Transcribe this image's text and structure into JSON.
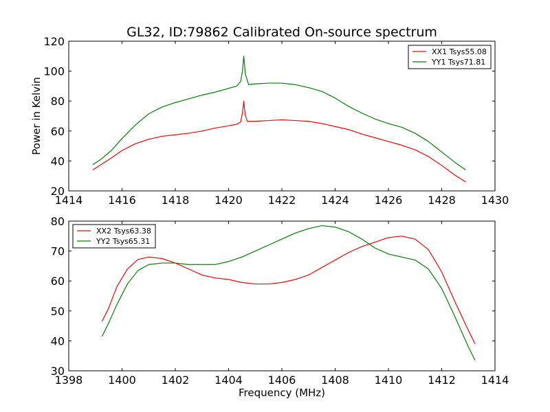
{
  "chart_data": [
    {
      "type": "line",
      "title": "GL32, ID:79862 Calibrated On-source spectrum",
      "xlabel": "",
      "ylabel": "Power in Kelvin",
      "xlim": [
        1414,
        1430
      ],
      "ylim": [
        20,
        120
      ],
      "xticks": [
        "1414",
        "1416",
        "1418",
        "1420",
        "1422",
        "1424",
        "1426",
        "1428",
        "1430"
      ],
      "yticks": [
        "20",
        "40",
        "60",
        "80",
        "100",
        "120"
      ],
      "grid": false,
      "legend_position": "top-right",
      "series": [
        {
          "name": "XX1 Tsys55.08",
          "color": "#ff0000",
          "points": [
            [
              1414.9,
              34
            ],
            [
              1415.2,
              37.5
            ],
            [
              1415.6,
              42
            ],
            [
              1416.0,
              47
            ],
            [
              1416.5,
              51.5
            ],
            [
              1417.0,
              54.5
            ],
            [
              1417.5,
              56.5
            ],
            [
              1418.0,
              57.5
            ],
            [
              1418.5,
              58.5
            ],
            [
              1419.0,
              60
            ],
            [
              1419.5,
              62
            ],
            [
              1420.0,
              63.5
            ],
            [
              1420.3,
              64.5
            ],
            [
              1420.45,
              66
            ],
            [
              1420.52,
              72
            ],
            [
              1420.57,
              80
            ],
            [
              1420.62,
              71
            ],
            [
              1420.7,
              66.5
            ],
            [
              1421.0,
              66.5
            ],
            [
              1421.5,
              67
            ],
            [
              1422.0,
              67.5
            ],
            [
              1422.5,
              67
            ],
            [
              1423.0,
              66.5
            ],
            [
              1423.5,
              65
            ],
            [
              1424.0,
              63
            ],
            [
              1424.5,
              61
            ],
            [
              1425.0,
              58
            ],
            [
              1425.5,
              55.5
            ],
            [
              1426.0,
              53
            ],
            [
              1426.5,
              50.5
            ],
            [
              1427.0,
              47.5
            ],
            [
              1427.5,
              43
            ],
            [
              1428.0,
              37
            ],
            [
              1428.5,
              30.5
            ],
            [
              1428.9,
              26
            ]
          ]
        },
        {
          "name": "YY1 Tsys71.81",
          "color": "#008000",
          "points": [
            [
              1414.9,
              37.5
            ],
            [
              1415.2,
              41
            ],
            [
              1415.6,
              47
            ],
            [
              1416.0,
              55
            ],
            [
              1416.5,
              64
            ],
            [
              1417.0,
              71.5
            ],
            [
              1417.5,
              76
            ],
            [
              1418.0,
              79
            ],
            [
              1418.5,
              81.5
            ],
            [
              1419.0,
              84
            ],
            [
              1419.5,
              86
            ],
            [
              1420.0,
              88.5
            ],
            [
              1420.3,
              90
            ],
            [
              1420.45,
              93
            ],
            [
              1420.52,
              100
            ],
            [
              1420.57,
              110
            ],
            [
              1420.63,
              98
            ],
            [
              1420.75,
              91
            ],
            [
              1421.0,
              91.5
            ],
            [
              1421.5,
              92
            ],
            [
              1422.0,
              92
            ],
            [
              1422.5,
              91
            ],
            [
              1423.0,
              89
            ],
            [
              1423.5,
              86.5
            ],
            [
              1424.0,
              82
            ],
            [
              1424.5,
              76.5
            ],
            [
              1425.0,
              72
            ],
            [
              1425.5,
              68
            ],
            [
              1426.0,
              65
            ],
            [
              1426.5,
              62.5
            ],
            [
              1427.0,
              58.5
            ],
            [
              1427.5,
              53
            ],
            [
              1428.0,
              46
            ],
            [
              1428.5,
              39
            ],
            [
              1428.9,
              34
            ]
          ]
        }
      ]
    },
    {
      "type": "line",
      "title": "",
      "xlabel": "Frequency (MHz)",
      "ylabel": "",
      "xlim": [
        1398,
        1414
      ],
      "ylim": [
        30,
        80
      ],
      "xticks": [
        "1398",
        "1400",
        "1402",
        "1404",
        "1406",
        "1408",
        "1410",
        "1412",
        "1414"
      ],
      "yticks": [
        "30",
        "40",
        "50",
        "60",
        "70",
        "80"
      ],
      "grid": false,
      "legend_position": "top-left",
      "series": [
        {
          "name": "XX2 Tsys63.38",
          "color": "#ff0000",
          "points": [
            [
              1399.25,
              46.5
            ],
            [
              1399.5,
              51
            ],
            [
              1399.8,
              58
            ],
            [
              1400.2,
              64
            ],
            [
              1400.6,
              67.2
            ],
            [
              1401.0,
              68
            ],
            [
              1401.5,
              67.5
            ],
            [
              1402.0,
              66
            ],
            [
              1402.5,
              64
            ],
            [
              1403.0,
              62
            ],
            [
              1403.5,
              61
            ],
            [
              1404.0,
              60.5
            ],
            [
              1404.5,
              59.5
            ],
            [
              1405.0,
              59
            ],
            [
              1405.5,
              59
            ],
            [
              1406.0,
              59.5
            ],
            [
              1406.5,
              60.5
            ],
            [
              1407.0,
              62
            ],
            [
              1407.5,
              64.5
            ],
            [
              1408.0,
              67
            ],
            [
              1408.5,
              69.5
            ],
            [
              1409.0,
              71.5
            ],
            [
              1409.5,
              73
            ],
            [
              1410.0,
              74.5
            ],
            [
              1410.5,
              75
            ],
            [
              1411.0,
              74
            ],
            [
              1411.5,
              70.5
            ],
            [
              1412.0,
              63
            ],
            [
              1412.5,
              53
            ],
            [
              1413.0,
              43.5
            ],
            [
              1413.25,
              39
            ]
          ]
        },
        {
          "name": "YY2 Tsys65.31",
          "color": "#008000",
          "points": [
            [
              1399.25,
              41.5
            ],
            [
              1399.5,
              46
            ],
            [
              1399.8,
              52
            ],
            [
              1400.2,
              59
            ],
            [
              1400.6,
              63.5
            ],
            [
              1401.0,
              65.5
            ],
            [
              1401.5,
              66
            ],
            [
              1402.0,
              66
            ],
            [
              1402.5,
              65.5
            ],
            [
              1403.0,
              65.5
            ],
            [
              1403.5,
              65.5
            ],
            [
              1404.0,
              66.5
            ],
            [
              1404.5,
              68
            ],
            [
              1405.0,
              70
            ],
            [
              1405.5,
              72
            ],
            [
              1406.0,
              74
            ],
            [
              1406.5,
              76
            ],
            [
              1407.0,
              77.5
            ],
            [
              1407.5,
              78.5
            ],
            [
              1408.0,
              78
            ],
            [
              1408.5,
              76.5
            ],
            [
              1409.0,
              74
            ],
            [
              1409.5,
              71
            ],
            [
              1410.0,
              69
            ],
            [
              1410.5,
              68
            ],
            [
              1411.0,
              67
            ],
            [
              1411.5,
              64
            ],
            [
              1412.0,
              57.5
            ],
            [
              1412.5,
              48
            ],
            [
              1413.0,
              38
            ],
            [
              1413.25,
              33.5
            ]
          ]
        }
      ]
    }
  ]
}
